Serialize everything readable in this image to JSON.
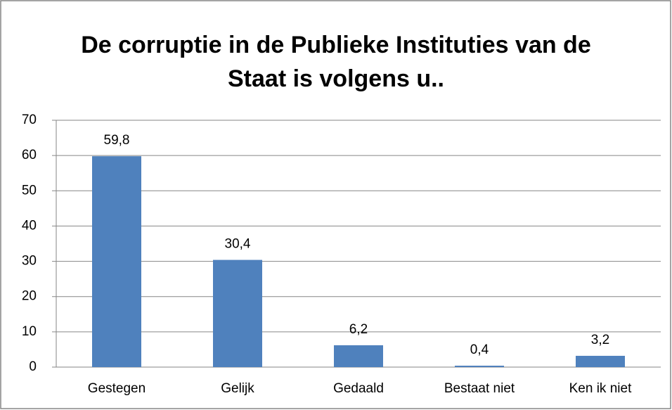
{
  "chart_data": {
    "type": "bar",
    "title": "De corruptie in de Publieke Instituties van de Staat is volgens u..",
    "categories": [
      "Gestegen",
      "Gelijk",
      "Gedaald",
      "Bestaat niet",
      "Ken ik niet"
    ],
    "values": [
      59.8,
      30.4,
      6.2,
      0.4,
      3.2
    ],
    "value_labels": [
      "59,8",
      "30,4",
      "6,2",
      "0,4",
      "3,2"
    ],
    "color": "#4f81bd",
    "ylim": [
      0,
      70
    ],
    "yticks": [
      0,
      10,
      20,
      30,
      40,
      50,
      60,
      70
    ],
    "grid": true
  }
}
